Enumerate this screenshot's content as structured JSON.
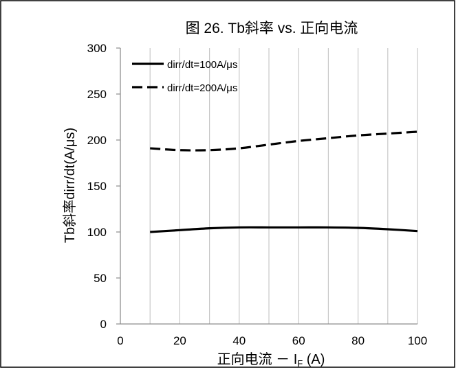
{
  "chart_data": {
    "type": "line",
    "title": "图 26. Tb斜率 vs. 正向电流",
    "xlabel_main": "正向电流 － I",
    "xlabel_sub": "F",
    "xlabel_unit": " (A)",
    "ylabel": "Tb斜率dirr/dt(A/μs)",
    "xlim": [
      0,
      100
    ],
    "ylim": [
      0,
      300
    ],
    "x_ticks": [
      0,
      20,
      40,
      60,
      80,
      100
    ],
    "y_ticks": [
      0,
      50,
      100,
      150,
      200,
      250,
      300
    ],
    "grid": {
      "vertical": true,
      "horizontal": false
    },
    "legend_position": "top-left",
    "series": [
      {
        "name": "dirr/dt=100A/μs",
        "style": "solid",
        "color": "#000000",
        "x": [
          10,
          20,
          30,
          40,
          50,
          60,
          70,
          80,
          90,
          100
        ],
        "y": [
          100,
          102,
          104,
          105,
          105,
          105,
          105,
          104.5,
          103,
          101
        ]
      },
      {
        "name": "dirr/dt=200A/μs",
        "style": "dashed",
        "color": "#000000",
        "x": [
          10,
          20,
          30,
          40,
          50,
          60,
          70,
          80,
          90,
          100
        ],
        "y": [
          191,
          189,
          189,
          191,
          195,
          199,
          202,
          205,
          207,
          209
        ]
      }
    ]
  }
}
